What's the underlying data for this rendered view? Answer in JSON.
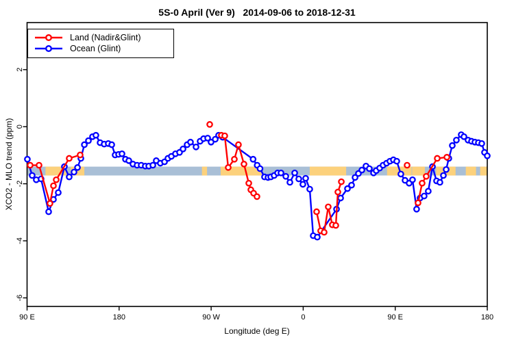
{
  "title": "5S-0 April (Ver 9)   2014-09-06 to 2018-12-31",
  "chart_data": {
    "type": "line",
    "title": "5S-0 April (Ver 9)   2014-09-06 to 2018-12-31",
    "xlabel": "Longitude (deg E)",
    "ylabel": "XCO2 - MLO trend (ppm)",
    "legend_position": "top-left",
    "x_axis": {
      "range": [
        90,
        540
      ],
      "ticks": [
        {
          "value": 90,
          "label": "90 E"
        },
        {
          "value": 180,
          "label": "180"
        },
        {
          "value": 270,
          "label": "90 W"
        },
        {
          "value": 360,
          "label": "0"
        },
        {
          "value": 450,
          "label": "90 E"
        },
        {
          "value": 540,
          "label": "180"
        }
      ]
    },
    "y_axis": {
      "range": [
        -6.3,
        3.65
      ],
      "ticks": [
        {
          "value": 2,
          "label": "2"
        },
        {
          "value": 0,
          "label": "0"
        },
        {
          "value": -2,
          "label": "-2"
        },
        {
          "value": -4,
          "label": "-4"
        },
        {
          "value": -6,
          "label": "-6"
        }
      ]
    },
    "band": {
      "ppm_top": -1.4,
      "ppm_bottom": -1.71,
      "color": "#a9bfd6",
      "patch_color": "#fcd17c",
      "patches": [
        {
          "from": 108,
          "to": 128.5
        },
        {
          "from": 132.5,
          "to": 146
        },
        {
          "from": 261,
          "to": 266
        },
        {
          "from": 279.3,
          "to": 319.5
        },
        {
          "from": 366.4,
          "to": 402
        },
        {
          "from": 442,
          "to": 466
        },
        {
          "from": 466.5,
          "to": 479
        },
        {
          "from": 490,
          "to": 509
        },
        {
          "from": 519,
          "to": 529
        },
        {
          "from": 533,
          "to": 540
        }
      ]
    },
    "series": [
      {
        "name": "Ocean (Glint)",
        "color": "#0000ff",
        "segments": [
          [
            [
              90.3,
              -1.14
            ],
            [
              95,
              -1.71
            ],
            [
              99,
              -1.86
            ],
            [
              103.7,
              -1.83
            ],
            [
              111.1,
              -2.98
            ],
            [
              115.8,
              -2.55
            ],
            [
              120.5,
              -2.31
            ],
            [
              126.5,
              -1.4
            ],
            [
              131.2,
              -1.76
            ],
            [
              135.9,
              -1.59
            ],
            [
              139.3,
              -1.43
            ],
            [
              142.6,
              -1.11
            ],
            [
              146,
              -0.63
            ],
            [
              150,
              -0.49
            ],
            [
              154,
              -0.35
            ],
            [
              157.3,
              -0.3
            ],
            [
              161.4,
              -0.56
            ],
            [
              165.4,
              -0.61
            ],
            [
              169.4,
              -0.59
            ],
            [
              172.8,
              -0.63
            ],
            [
              176.1,
              -0.99
            ],
            [
              179.5,
              -0.97
            ],
            [
              182.8,
              -0.95
            ],
            [
              186.2,
              -1.14
            ],
            [
              189.5,
              -1.19
            ],
            [
              193.5,
              -1.31
            ],
            [
              197.6,
              -1.35
            ],
            [
              201.6,
              -1.35
            ],
            [
              205.6,
              -1.38
            ],
            [
              209,
              -1.38
            ],
            [
              213,
              -1.35
            ],
            [
              216.3,
              -1.19
            ],
            [
              220.3,
              -1.28
            ],
            [
              224.4,
              -1.23
            ],
            [
              227.7,
              -1.11
            ],
            [
              231.1,
              -1.04
            ],
            [
              235.1,
              -0.95
            ],
            [
              239.1,
              -0.9
            ],
            [
              242.5,
              -0.78
            ],
            [
              246.5,
              -0.63
            ],
            [
              249.8,
              -0.54
            ],
            [
              255.2,
              -0.71
            ],
            [
              259.2,
              -0.51
            ],
            [
              262.6,
              -0.42
            ],
            [
              266.6,
              -0.4
            ],
            [
              269.9,
              -0.54
            ],
            [
              274,
              -0.44
            ],
            [
              277.3,
              -0.3
            ],
            [
              281.3,
              -0.37
            ],
            [
              311,
              -1.14
            ],
            [
              315,
              -1.35
            ],
            [
              317.8,
              -1.47
            ],
            [
              322.2,
              -1.76
            ],
            [
              325.6,
              -1.78
            ],
            [
              328.3,
              -1.76
            ],
            [
              331.6,
              -1.71
            ],
            [
              335,
              -1.62
            ],
            [
              338.3,
              -1.62
            ],
            [
              343,
              -1.74
            ],
            [
              347,
              -1.95
            ],
            [
              351.7,
              -1.62
            ],
            [
              355.7,
              -1.83
            ],
            [
              359.7,
              -2.02
            ],
            [
              362.4,
              -1.81
            ],
            [
              366.4,
              -2.19
            ],
            [
              369.8,
              -3.82
            ],
            [
              373.8,
              -3.87
            ],
            [
              392.6,
              -2.89
            ],
            [
              396.6,
              -2.5
            ],
            [
              403.3,
              -2.17
            ],
            [
              407.3,
              -2.05
            ],
            [
              410.7,
              -1.78
            ],
            [
              414,
              -1.64
            ],
            [
              417.4,
              -1.52
            ],
            [
              421.4,
              -1.38
            ],
            [
              424.7,
              -1.47
            ],
            [
              428.8,
              -1.62
            ],
            [
              431.4,
              -1.54
            ],
            [
              434.8,
              -1.45
            ],
            [
              438.1,
              -1.35
            ],
            [
              441.5,
              -1.28
            ],
            [
              444.8,
              -1.21
            ],
            [
              448.2,
              -1.16
            ],
            [
              451.5,
              -1.21
            ],
            [
              455.5,
              -1.66
            ],
            [
              459.6,
              -1.88
            ],
            [
              463.6,
              -1.98
            ],
            [
              466.9,
              -1.86
            ],
            [
              470.9,
              -2.89
            ],
            [
              474.3,
              -2.5
            ],
            [
              478.3,
              -2.43
            ],
            [
              482.3,
              -2.26
            ],
            [
              486.4,
              -1.4
            ],
            [
              490.4,
              -1.9
            ],
            [
              493.7,
              -1.95
            ],
            [
              497.1,
              -1.71
            ],
            [
              499.8,
              -1.5
            ],
            [
              502.4,
              -1.11
            ],
            [
              505.8,
              -0.66
            ],
            [
              509.8,
              -0.47
            ],
            [
              514.5,
              -0.28
            ],
            [
              517.2,
              -0.35
            ],
            [
              521.2,
              -0.47
            ],
            [
              524.6,
              -0.51
            ],
            [
              527.9,
              -0.54
            ],
            [
              531.3,
              -0.56
            ],
            [
              534.6,
              -0.59
            ],
            [
              537.3,
              -0.9
            ],
            [
              540,
              -1.02
            ]
          ]
        ]
      },
      {
        "name": "Land (Nadir&Glint)",
        "color": "#ff0000",
        "segments": [
          [
            [
              93,
              -1.35
            ],
            [
              101.7,
              -1.35
            ],
            [
              112.4,
              -2.69
            ],
            [
              115.8,
              -2.07
            ],
            [
              118.5,
              -1.86
            ],
            [
              131.2,
              -1.11
            ],
            [
              141.9,
              -0.99
            ]
          ],
          [
            [
              268.6,
              0.08
            ]
          ],
          [
            [
              280,
              -0.3
            ],
            [
              283.3,
              -0.32
            ],
            [
              286.7,
              -1.43
            ],
            [
              292.7,
              -1.14
            ],
            [
              296.7,
              -0.63
            ],
            [
              302.1,
              -1.31
            ],
            [
              306.8,
              -1.98
            ],
            [
              308.8,
              -2.21
            ],
            [
              311.5,
              -2.33
            ],
            [
              314.8,
              -2.45
            ]
          ],
          [
            [
              373.1,
              -2.98
            ],
            [
              377.1,
              -3.65
            ],
            [
              380.5,
              -3.7
            ],
            [
              384.5,
              -2.81
            ],
            [
              388.5,
              -3.44
            ],
            [
              391.9,
              -3.46
            ],
            [
              393.9,
              -2.29
            ],
            [
              397.3,
              -1.93
            ]
          ],
          [
            [
              461.6,
              -1.35
            ]
          ],
          [
            [
              472.3,
              -2.67
            ],
            [
              476.3,
              -1.98
            ],
            [
              480.3,
              -1.74
            ],
            [
              491.1,
              -1.11
            ],
            [
              500.5,
              -1.07
            ]
          ]
        ]
      }
    ],
    "legend_order": [
      "Land (Nadir&Glint)",
      "Ocean (Glint)"
    ]
  }
}
